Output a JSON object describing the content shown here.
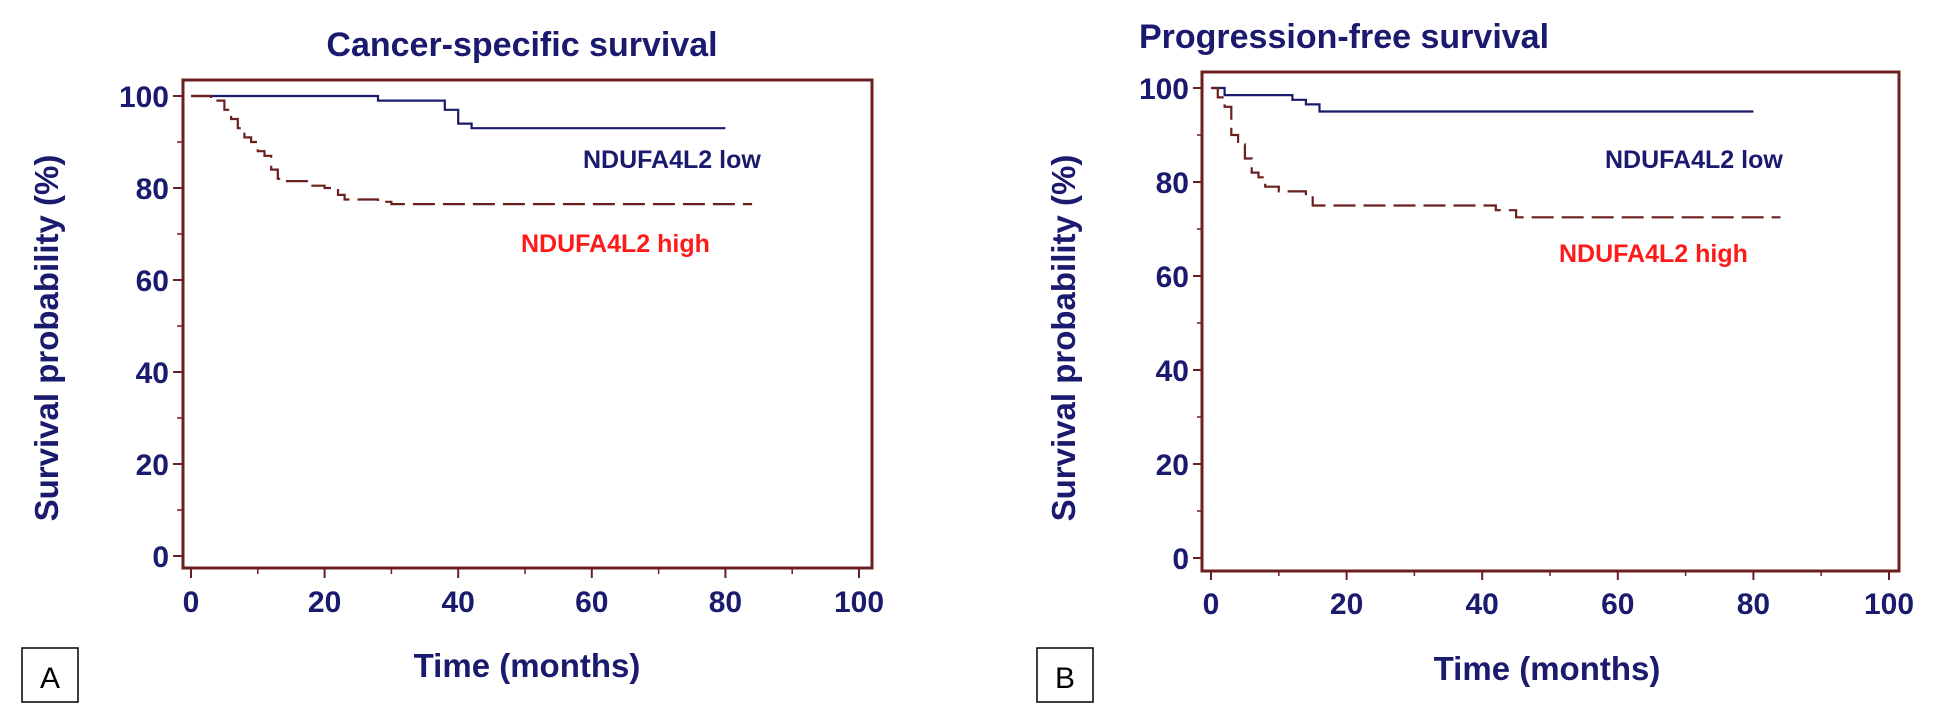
{
  "colors": {
    "axis_frame": "#6b1f1f",
    "low_series": "#1a1a6e",
    "high_series": "#6b1f1f",
    "high_label": "#ff1a1a",
    "text": "#1a1a6e"
  },
  "chart_data": [
    {
      "panel": "A",
      "type": "line",
      "title": "Cancer-specific survival",
      "xlabel": "Time (months)",
      "ylabel": "Survival probability (%)",
      "xlim": [
        0,
        100
      ],
      "ylim": [
        0,
        100
      ],
      "xticks": [
        0,
        20,
        40,
        60,
        80,
        100
      ],
      "yticks": [
        0,
        20,
        40,
        60,
        80,
        100
      ],
      "grid": false,
      "series": [
        {
          "name": "NDUFA4L2 low",
          "style": "solid",
          "color": "#1a1a6e",
          "x": [
            0,
            28,
            35,
            38,
            40,
            42,
            80
          ],
          "y": [
            100,
            99,
            99,
            97,
            94,
            93,
            93
          ]
        },
        {
          "name": "NDUFA4L2 high",
          "style": "dashed",
          "color": "#6b1f1f",
          "x": [
            0,
            3,
            5,
            6,
            7,
            8,
            9,
            10,
            11,
            12,
            13,
            14,
            18,
            20,
            22,
            23,
            28,
            30,
            84
          ],
          "y": [
            100,
            99,
            97,
            95,
            93,
            91,
            90,
            88,
            87,
            84,
            82,
            81.5,
            80.5,
            80,
            78.5,
            77.5,
            77,
            76.5,
            76.5
          ]
        }
      ]
    },
    {
      "panel": "B",
      "type": "line",
      "title": "Progression-free survival",
      "xlabel": "Time (months)",
      "ylabel": "Survival probability (%)",
      "xlim": [
        0,
        100
      ],
      "ylim": [
        0,
        100
      ],
      "xticks": [
        0,
        20,
        40,
        60,
        80,
        100
      ],
      "yticks": [
        0,
        20,
        40,
        60,
        80,
        100
      ],
      "grid": false,
      "series": [
        {
          "name": "NDUFA4L2 low",
          "style": "solid",
          "color": "#1a1a6e",
          "x": [
            0,
            2,
            12,
            14,
            16,
            80
          ],
          "y": [
            100,
            98.5,
            97.5,
            96.5,
            95,
            95
          ]
        },
        {
          "name": "NDUFA4L2 high",
          "style": "dashed",
          "color": "#6b1f1f",
          "x": [
            0,
            1,
            2,
            3,
            4,
            5,
            6,
            7,
            8,
            10,
            14,
            15,
            40,
            42,
            45,
            84
          ],
          "y": [
            100,
            98,
            96,
            90,
            88,
            85,
            82,
            81,
            79,
            78,
            77,
            75,
            75,
            74,
            72.5,
            72.5
          ]
        }
      ]
    }
  ]
}
